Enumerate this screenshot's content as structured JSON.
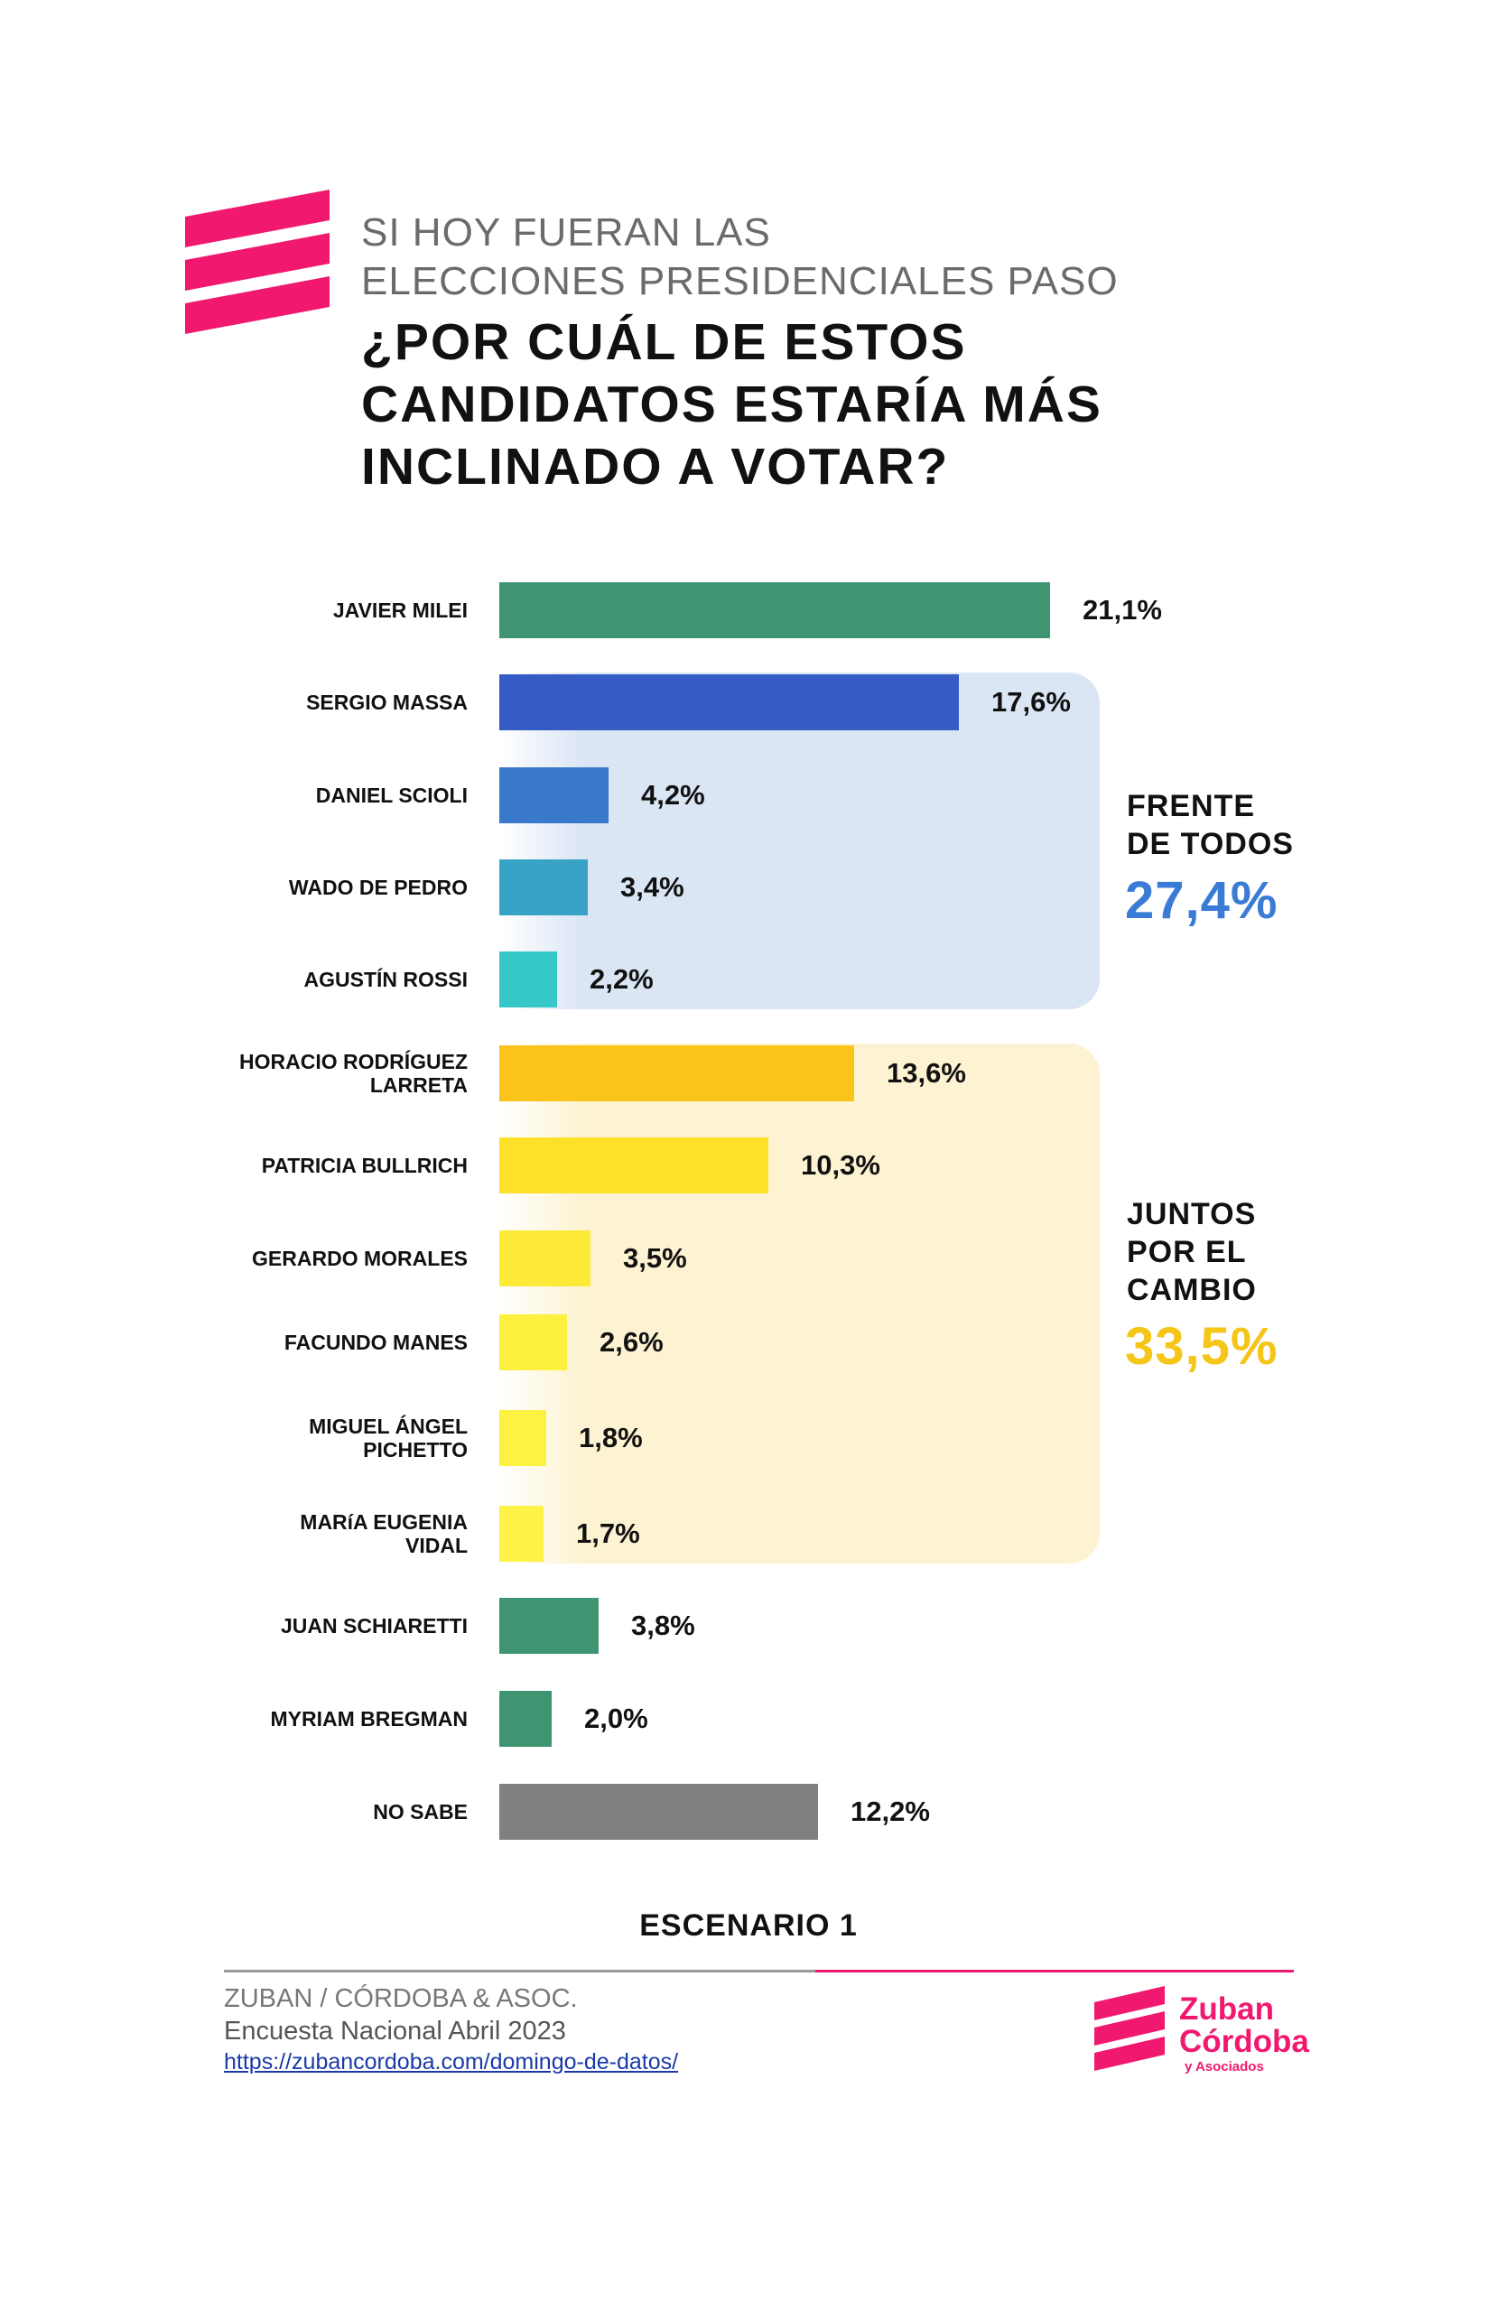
{
  "header": {
    "subtitle_line1": "SI HOY FUERAN LAS",
    "subtitle_line2": "ELECCIONES PRESIDENCIALES PASO",
    "question_line1": "¿POR CUÁL DE ESTOS",
    "question_line2": "CANDIDATOS ESTARÍA MÁS",
    "question_line3": "INCLINADO A VOTAR?"
  },
  "chart_data": {
    "type": "bar",
    "orientation": "horizontal",
    "value_max": 21.1,
    "items": [
      {
        "label_lines": [
          "JAVIER MILEI"
        ],
        "value": 21.1,
        "value_label": "21,1%",
        "color": "#3f9571"
      },
      {
        "label_lines": [
          "SERGIO MASSA"
        ],
        "value": 17.6,
        "value_label": "17,6%",
        "color": "#355bc5"
      },
      {
        "label_lines": [
          "DANIEL SCIOLI"
        ],
        "value": 4.2,
        "value_label": "4,2%",
        "color": "#3a78c9"
      },
      {
        "label_lines": [
          "WADO DE PEDRO"
        ],
        "value": 3.4,
        "value_label": "3,4%",
        "color": "#38a3c4"
      },
      {
        "label_lines": [
          "AGUSTÍN ROSSI"
        ],
        "value": 2.2,
        "value_label": "2,2%",
        "color": "#36c8c8"
      },
      {
        "label_lines": [
          "HORACIO RODRÍGUEZ",
          "LARRETA"
        ],
        "value": 13.6,
        "value_label": "13,6%",
        "color": "#fbc41a"
      },
      {
        "label_lines": [
          "PATRICIA BULLRICH"
        ],
        "value": 10.3,
        "value_label": "10,3%",
        "color": "#fde027"
      },
      {
        "label_lines": [
          "GERARDO MORALES"
        ],
        "value": 3.5,
        "value_label": "3,5%",
        "color": "#fdea38"
      },
      {
        "label_lines": [
          "FACUNDO MANES"
        ],
        "value": 2.6,
        "value_label": "2,6%",
        "color": "#fdf03f"
      },
      {
        "label_lines": [
          "MIGUEL ÁNGEL",
          "PICHETTO"
        ],
        "value": 1.8,
        "value_label": "1,8%",
        "color": "#fdf142"
      },
      {
        "label_lines": [
          "MARíA EUGENIA",
          "VIDAL"
        ],
        "value": 1.7,
        "value_label": "1,7%",
        "color": "#fdf245"
      },
      {
        "label_lines": [
          "JUAN SCHIARETTI"
        ],
        "value": 3.8,
        "value_label": "3,8%",
        "color": "#3f9571"
      },
      {
        "label_lines": [
          "MYRIAM BREGMAN"
        ],
        "value": 2.0,
        "value_label": "2,0%",
        "color": "#3f9571"
      },
      {
        "label_lines": [
          "NO SABE"
        ],
        "value": 12.2,
        "value_label": "12,2%",
        "color": "#808080"
      }
    ],
    "groups": [
      {
        "name_lines": [
          "FRENTE",
          "DE TODOS"
        ],
        "total": "27,4%",
        "total_color": "#3a7bd5",
        "box_color": "#dbe6f5",
        "members": [
          1,
          4
        ]
      },
      {
        "name_lines": [
          "JUNTOS",
          "POR EL",
          "CAMBIO"
        ],
        "total": "33,5%",
        "total_color": "#f5c518",
        "box_color": "#fdf3d2",
        "members": [
          5,
          10
        ]
      }
    ],
    "scenario": "ESCENARIO 1"
  },
  "footer": {
    "org": "ZUBAN / CÓRDOBA & ASOC.",
    "survey": "Encuesta Nacional Abril 2023",
    "url": "https://zubancordoba.com/domingo-de-datos/",
    "brand_line1": "Zuban",
    "brand_line2": "Córdoba",
    "brand_line3": "y Asociados",
    "colors": {
      "brand_pink": "#f0196f",
      "line_gray": "#9a9a9a"
    }
  }
}
